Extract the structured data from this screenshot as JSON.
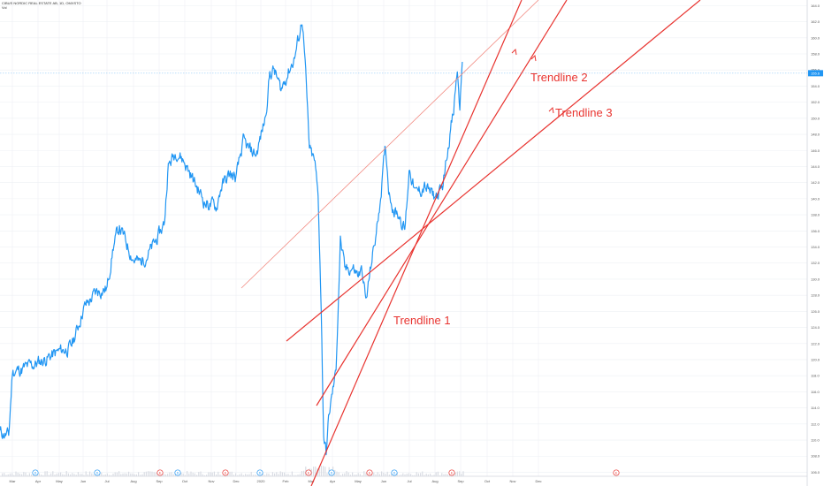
{
  "header": {
    "symbol_line": "CIBUS NORDIC REAL ESTATE AB, 1D, OMXSTO",
    "volume_label": "Vol"
  },
  "colors": {
    "price_line": "#2196f3",
    "trendline": "#e8332f",
    "channel_line": "#f28b82",
    "last_price_bg": "#2196f3",
    "grid": "#eef0f4",
    "event_dividend": "#2196f3",
    "event_earnings": "#e8332f"
  },
  "annotations": [
    {
      "id": "trendline-1",
      "text": "Trendline 1"
    },
    {
      "id": "trendline-2",
      "text": "Trendline 2"
    },
    {
      "id": "trendline-3",
      "text": "Trendline 3"
    }
  ],
  "chart_data": {
    "type": "line",
    "title": "CIBUS NORDIC REAL ESTATE AB, 1D, OMXSTO",
    "ylabel": "",
    "xlabel": "",
    "ylim": [
      105.5,
      164.7
    ],
    "grid": true,
    "last_price": "155.6",
    "y_ticks": [
      "164.0",
      "162.0",
      "160.0",
      "158.0",
      "156.0",
      "154.0",
      "152.0",
      "150.0",
      "148.0",
      "146.0",
      "144.0",
      "142.0",
      "140.0",
      "138.0",
      "136.0",
      "134.0",
      "132.0",
      "130.0",
      "128.0",
      "126.0",
      "124.0",
      "122.0",
      "120.0",
      "118.0",
      "116.0",
      "114.0",
      "112.0",
      "110.0",
      "108.0",
      "106.0"
    ],
    "x_ticks": [
      "Mar",
      "Apr",
      "May",
      "Jun",
      "Jul",
      "Aug",
      "Sep",
      "Oct",
      "Nov",
      "Dec",
      "2020",
      "Feb",
      "Mar",
      "Apr",
      "May",
      "Jun",
      "Jul",
      "Aug",
      "Sep",
      "Oct",
      "Nov",
      "Dec"
    ],
    "series": [
      {
        "x": [
          "Mar",
          "Apr",
          "May",
          "Jun",
          "Jul",
          "Aug",
          "Sep",
          "Oct",
          "Nov",
          "Dec",
          "2020",
          "Feb",
          "Mar",
          "Apr",
          "May",
          "Jun",
          "Jul",
          "Aug",
          "Sep"
        ],
        "values": [
          111.0,
          119.0,
          121.0,
          126.0,
          132.5,
          135.5,
          138.8,
          146.0,
          142.8,
          144.6,
          156.5,
          160.0,
          114.0,
          126.5,
          130.0,
          141.2,
          140.3,
          141.8,
          155.6
        ]
      }
    ],
    "event_markers": [
      {
        "type": "dividend",
        "label": "D"
      },
      {
        "type": "dividend",
        "label": "D"
      },
      {
        "type": "earnings",
        "label": "E"
      },
      {
        "type": "dividend",
        "label": "D"
      },
      {
        "type": "earnings",
        "label": "E"
      },
      {
        "type": "dividend",
        "label": "D"
      },
      {
        "type": "earnings",
        "label": "E"
      },
      {
        "type": "dividend",
        "label": "D"
      },
      {
        "type": "earnings",
        "label": "E"
      },
      {
        "type": "dividend",
        "label": "D"
      },
      {
        "type": "earnings",
        "label": "E"
      },
      {
        "type": "earnings",
        "label": "E"
      }
    ]
  }
}
